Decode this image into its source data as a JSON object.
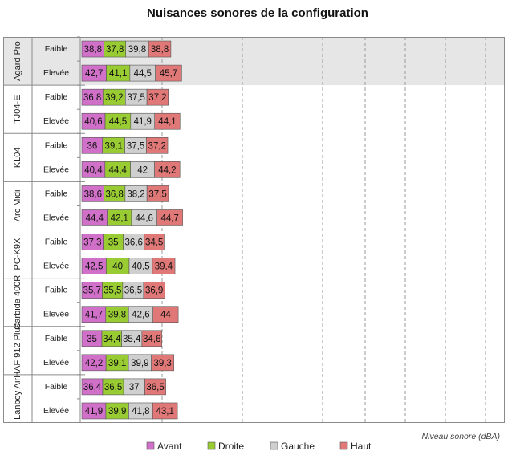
{
  "chart_data": {
    "type": "bar",
    "orientation": "horizontal",
    "stacked": true,
    "title": "Nuisances sonores de la configuration",
    "xlabel": "Niveau sonore (dBA)",
    "legend_position": "bottom",
    "grid": true,
    "groups": [
      {
        "name": "Agard Pro",
        "rows": [
          {
            "label": "Faible",
            "values": [
              38.8,
              37.8,
              39.8,
              38.8
            ],
            "display": [
              "38,8",
              "37,8",
              "39,8",
              "38,8"
            ]
          },
          {
            "label": "Elevée",
            "values": [
              42.7,
              41.1,
              44.5,
              45.7
            ],
            "display": [
              "42,7",
              "41,1",
              "44,5",
              "45,7"
            ]
          }
        ]
      },
      {
        "name": "TJ04-E",
        "rows": [
          {
            "label": "Faible",
            "values": [
              36.8,
              39.2,
              37.5,
              37.2
            ],
            "display": [
              "36,8",
              "39,2",
              "37,5",
              "37,2"
            ]
          },
          {
            "label": "Elevée",
            "values": [
              40.6,
              44.5,
              41.9,
              44.1
            ],
            "display": [
              "40,6",
              "44,5",
              "41,9",
              "44,1"
            ]
          }
        ]
      },
      {
        "name": "KL04",
        "rows": [
          {
            "label": "Faible",
            "values": [
              36,
              39.1,
              37.5,
              37.2
            ],
            "display": [
              "36",
              "39,1",
              "37,5",
              "37,2"
            ]
          },
          {
            "label": "Elevée",
            "values": [
              40.4,
              44.4,
              42,
              44.2
            ],
            "display": [
              "40,4",
              "44,4",
              "42",
              "44,2"
            ]
          }
        ]
      },
      {
        "name": "Arc Midi",
        "rows": [
          {
            "label": "Faible",
            "values": [
              38.6,
              36.8,
              38.2,
              37.5
            ],
            "display": [
              "38,6",
              "36,8",
              "38,2",
              "37,5"
            ]
          },
          {
            "label": "Elevée",
            "values": [
              44.4,
              42.1,
              44.6,
              44.7
            ],
            "display": [
              "44,4",
              "42,1",
              "44,6",
              "44,7"
            ]
          }
        ]
      },
      {
        "name": "PC-K9X",
        "rows": [
          {
            "label": "Faible",
            "values": [
              37.3,
              35,
              36.6,
              34.5
            ],
            "display": [
              "37,3",
              "35",
              "36,6",
              "34,5"
            ]
          },
          {
            "label": "Elevée",
            "values": [
              42.5,
              40,
              40.5,
              39.4
            ],
            "display": [
              "42,5",
              "40",
              "40,5",
              "39,4"
            ]
          }
        ]
      },
      {
        "name": "Carbide 400R",
        "rows": [
          {
            "label": "Faible",
            "values": [
              35.7,
              35.5,
              36.5,
              36.9
            ],
            "display": [
              "35,7",
              "35,5",
              "36,5",
              "36,9"
            ]
          },
          {
            "label": "Elevée",
            "values": [
              41.7,
              39.8,
              42.6,
              44
            ],
            "display": [
              "41,7",
              "39,8",
              "42,6",
              "44"
            ]
          }
        ]
      },
      {
        "name": "HAF 912 Plus",
        "rows": [
          {
            "label": "Faible",
            "values": [
              35,
              34.4,
              35.4,
              34.6
            ],
            "display": [
              "35",
              "34,4",
              "35,4",
              "34,6"
            ]
          },
          {
            "label": "Elevée",
            "values": [
              42.2,
              39.1,
              39.9,
              39.3
            ],
            "display": [
              "42,2",
              "39,1",
              "39,9",
              "39,3"
            ]
          }
        ]
      },
      {
        "name": "Lanboy Air",
        "rows": [
          {
            "label": "Faible",
            "values": [
              36.4,
              36.5,
              37,
              36.5
            ],
            "display": [
              "36,4",
              "36,5",
              "37",
              "36,5"
            ]
          },
          {
            "label": "Elevée",
            "values": [
              41.9,
              39.9,
              41.8,
              43.1
            ],
            "display": [
              "41,9",
              "39,9",
              "41,8",
              "43,1"
            ]
          }
        ]
      }
    ],
    "series": [
      {
        "name": "Avant",
        "color": "#d070c8"
      },
      {
        "name": "Droite",
        "color": "#99cc33"
      },
      {
        "name": "Gauche",
        "color": "#cfcfcf"
      },
      {
        "name": "Haut",
        "color": "#e07878"
      }
    ]
  }
}
